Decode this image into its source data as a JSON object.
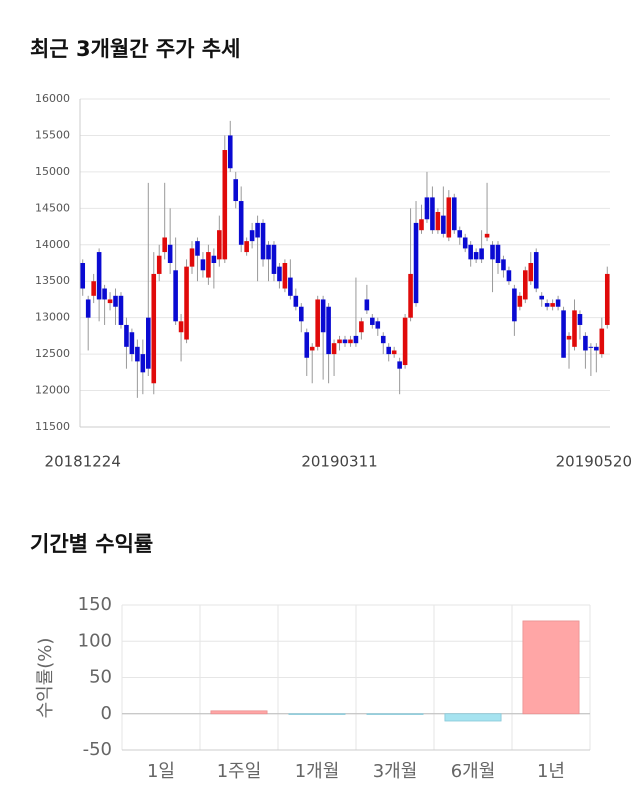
{
  "chart_data": [
    {
      "type": "candlestick",
      "title": "최근 3개월간 주가 추세",
      "categories": [
        "20181224",
        null,
        null,
        null,
        null,
        null,
        null,
        null,
        null,
        null,
        null,
        null,
        null,
        null,
        null,
        null,
        null,
        null,
        null,
        null,
        null,
        null,
        null,
        null,
        null,
        null,
        null,
        null,
        null,
        null,
        null,
        null,
        null,
        null,
        null,
        null,
        null,
        null,
        null,
        null,
        null,
        null,
        null,
        null,
        null,
        null,
        null,
        "20190311",
        null,
        null,
        null,
        null,
        null,
        null,
        null,
        null,
        null,
        null,
        null,
        null,
        null,
        null,
        null,
        null,
        null,
        null,
        null,
        null,
        null,
        null,
        null,
        null,
        null,
        null,
        null,
        null,
        null,
        null,
        null,
        null,
        null,
        null,
        null,
        null,
        null,
        null,
        null,
        null,
        null,
        null,
        null,
        null,
        null,
        null,
        null,
        null,
        "20190520"
      ],
      "open": [
        13750,
        13250,
        13300,
        13900,
        13400,
        13200,
        13300,
        13300,
        12900,
        12800,
        12600,
        12500,
        13000,
        12100,
        13600,
        13900,
        14000,
        13650,
        12800,
        12700,
        13700,
        14050,
        13800,
        13550,
        13850,
        13800,
        13800,
        15500,
        14900,
        14600,
        13900,
        14200,
        14300,
        14300,
        14000,
        14000,
        13700,
        13400,
        13550,
        13300,
        13150,
        12800,
        12550,
        12600,
        13250,
        13150,
        12500,
        12650,
        12700,
        12650,
        12750,
        12800,
        13250,
        13000,
        12950,
        12750,
        12600,
        12500,
        12400,
        12350,
        13000,
        14300,
        14200,
        14650,
        14650,
        14200,
        14400,
        14100,
        14650,
        14200,
        14100,
        14000,
        13900,
        13950,
        14100,
        14000,
        14000,
        13800,
        13650,
        13400,
        13150,
        13250,
        13500,
        13900,
        13300,
        13200,
        13150,
        13250,
        13100,
        12700,
        12600,
        13050,
        12750,
        12600,
        12600,
        12500,
        12900
      ],
      "high": [
        13800,
        13300,
        13600,
        13950,
        13450,
        13350,
        13400,
        13350,
        13000,
        12850,
        12700,
        12700,
        14850,
        13900,
        14000,
        14850,
        14500,
        14100,
        13050,
        13800,
        14050,
        14100,
        13900,
        14000,
        13950,
        14400,
        15500,
        15700,
        15000,
        14800,
        14100,
        14300,
        14400,
        14350,
        14050,
        14050,
        13750,
        13800,
        13800,
        13400,
        13200,
        12850,
        12650,
        13300,
        13300,
        13200,
        12700,
        12750,
        12750,
        12750,
        13550,
        13000,
        13450,
        13050,
        13000,
        12800,
        12650,
        12600,
        12450,
        13050,
        14500,
        14600,
        14550,
        15000,
        14800,
        14500,
        14800,
        14750,
        14700,
        14250,
        14150,
        14050,
        13950,
        14200,
        14850,
        14050,
        14050,
        13850,
        13700,
        13450,
        13350,
        13700,
        13900,
        13950,
        13350,
        13250,
        13250,
        13300,
        13150,
        12800,
        13250,
        13100,
        12800,
        12650,
        12650,
        13000,
        13700
      ],
      "low": [
        13300,
        12550,
        13200,
        12950,
        12900,
        13100,
        12900,
        12850,
        12300,
        12400,
        11900,
        11950,
        12200,
        11950,
        13500,
        13800,
        13600,
        12900,
        12400,
        12650,
        13600,
        13500,
        13550,
        13450,
        13400,
        13700,
        13750,
        15000,
        14500,
        13900,
        13850,
        13950,
        13500,
        13700,
        13500,
        13500,
        13400,
        13350,
        13250,
        13100,
        12800,
        12200,
        12100,
        12550,
        12150,
        12100,
        12200,
        12550,
        12600,
        12600,
        12600,
        12700,
        13050,
        12850,
        12750,
        12500,
        12400,
        12450,
        11950,
        12300,
        12950,
        13150,
        14150,
        14300,
        14150,
        14150,
        14100,
        14050,
        14150,
        14000,
        13900,
        13700,
        13750,
        13750,
        14050,
        13350,
        13600,
        13550,
        13450,
        12750,
        13100,
        13200,
        13450,
        13350,
        13150,
        13100,
        13100,
        13100,
        12450,
        12300,
        12550,
        12700,
        12300,
        12200,
        12250,
        12450,
        12850
      ],
      "close": [
        13400,
        13000,
        13500,
        13250,
        13250,
        13250,
        13150,
        12900,
        12600,
        12500,
        12400,
        12250,
        12300,
        13600,
        13850,
        14100,
        13750,
        12950,
        12950,
        13700,
        13950,
        13850,
        13650,
        13900,
        13750,
        14200,
        15300,
        15050,
        14600,
        14000,
        14050,
        14050,
        14100,
        13800,
        13800,
        13600,
        13500,
        13750,
        13300,
        13150,
        12950,
        12450,
        12600,
        13250,
        12800,
        12500,
        12650,
        12700,
        12650,
        12700,
        12650,
        12950,
        13100,
        12900,
        12850,
        12650,
        12500,
        12550,
        12300,
        13000,
        13600,
        13200,
        14350,
        14350,
        14200,
        14450,
        14150,
        14650,
        14200,
        14100,
        13950,
        13800,
        13800,
        13800,
        14150,
        13800,
        13750,
        13650,
        13500,
        12950,
        13300,
        13650,
        13750,
        13400,
        13250,
        13150,
        13200,
        13150,
        12450,
        12750,
        13100,
        12900,
        12550,
        12600,
        12550,
        12850,
        13600
      ],
      "up_color": "#e00a0a",
      "down_color": "#0a0ad2",
      "ylim": [
        11500,
        16000
      ],
      "yticks": [
        11500,
        12000,
        12500,
        13000,
        13500,
        14000,
        14500,
        15000,
        15500,
        16000
      ],
      "grid": true
    },
    {
      "type": "bar",
      "title": "기간별 수익률",
      "ylabel": "수익률(%)",
      "categories": [
        "1일",
        "1주일",
        "1개월",
        "3개월",
        "6개월",
        "1년"
      ],
      "values": [
        0,
        4,
        -1,
        -1,
        -10,
        128
      ],
      "positive_color": "#ffa6a6",
      "negative_color": "#a6e3f0",
      "ylim": [
        -50,
        150
      ],
      "yticks": [
        -50,
        0,
        50,
        100,
        150
      ],
      "grid": true
    }
  ]
}
